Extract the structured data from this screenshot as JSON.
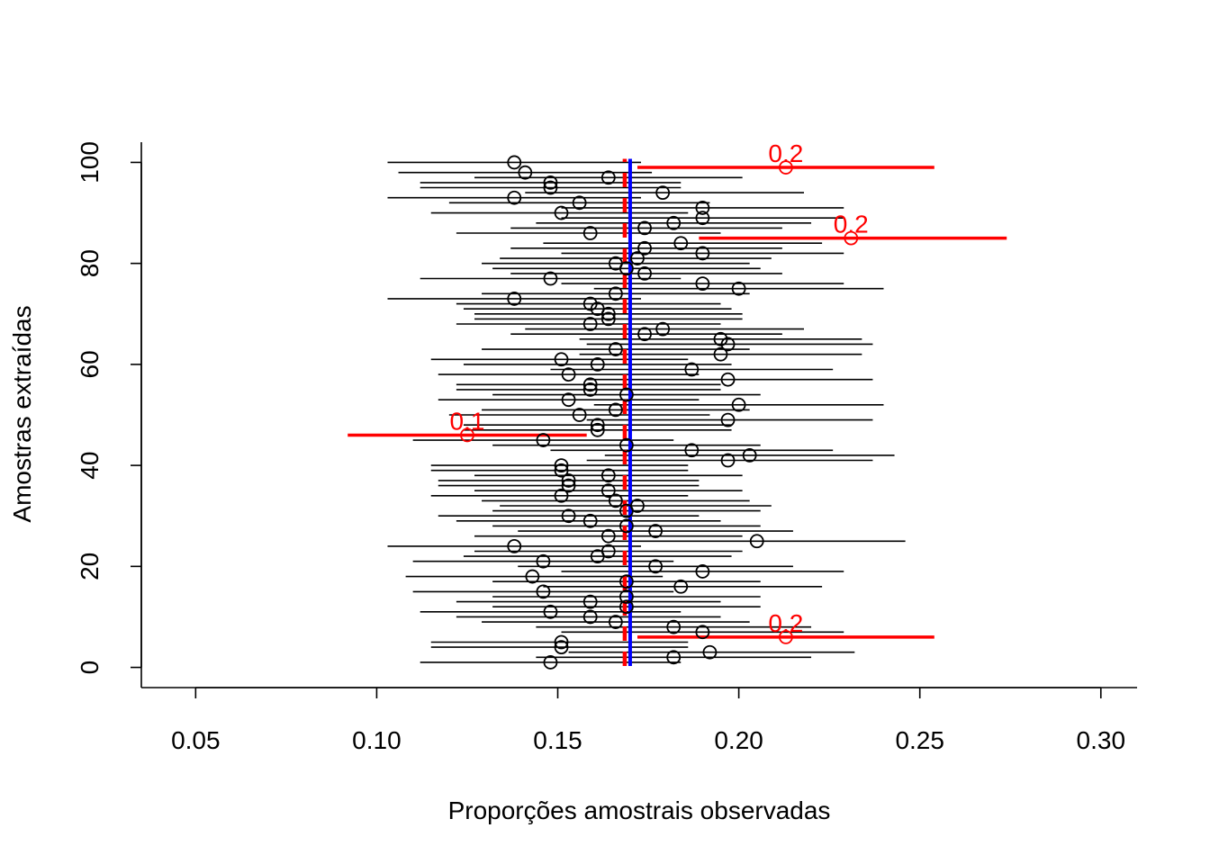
{
  "chart_data": {
    "type": "scatter",
    "title": "",
    "xlabel": "Proporções amostrais observadas",
    "ylabel": "Amostras extraídas",
    "xlim": [
      0.035,
      0.31
    ],
    "ylim": [
      -4,
      104
    ],
    "xticks": [
      "0.05",
      "0.10",
      "0.15",
      "0.20",
      "0.25",
      "0.30"
    ],
    "yticks": [
      "0",
      "20",
      "40",
      "60",
      "80",
      "100"
    ],
    "reference_lines": {
      "true_proportion": 0.17,
      "mean_of_sample_proportions": 0.1685,
      "true_color": "#0000ff",
      "mean_color": "#ff0000"
    },
    "highlight_label_color": "#ff0000",
    "samples": [
      {
        "sample": 1,
        "p": 0.148,
        "lo": 0.112,
        "hi": 0.184
      },
      {
        "sample": 2,
        "p": 0.182,
        "lo": 0.144,
        "hi": 0.22
      },
      {
        "sample": 3,
        "p": 0.192,
        "lo": 0.153,
        "hi": 0.232
      },
      {
        "sample": 4,
        "p": 0.151,
        "lo": 0.115,
        "hi": 0.186
      },
      {
        "sample": 5,
        "p": 0.151,
        "lo": 0.115,
        "hi": 0.186
      },
      {
        "sample": 6,
        "p": 0.213,
        "lo": 0.172,
        "hi": 0.254,
        "outside": true,
        "label": "0.2"
      },
      {
        "sample": 7,
        "p": 0.19,
        "lo": 0.151,
        "hi": 0.229
      },
      {
        "sample": 8,
        "p": 0.182,
        "lo": 0.144,
        "hi": 0.22
      },
      {
        "sample": 9,
        "p": 0.166,
        "lo": 0.129,
        "hi": 0.203
      },
      {
        "sample": 10,
        "p": 0.159,
        "lo": 0.122,
        "hi": 0.195
      },
      {
        "sample": 11,
        "p": 0.148,
        "lo": 0.112,
        "hi": 0.184
      },
      {
        "sample": 12,
        "p": 0.169,
        "lo": 0.132,
        "hi": 0.206
      },
      {
        "sample": 13,
        "p": 0.159,
        "lo": 0.122,
        "hi": 0.195
      },
      {
        "sample": 14,
        "p": 0.169,
        "lo": 0.132,
        "hi": 0.206
      },
      {
        "sample": 15,
        "p": 0.146,
        "lo": 0.11,
        "hi": 0.182
      },
      {
        "sample": 16,
        "p": 0.184,
        "lo": 0.146,
        "hi": 0.223
      },
      {
        "sample": 17,
        "p": 0.169,
        "lo": 0.132,
        "hi": 0.206
      },
      {
        "sample": 18,
        "p": 0.143,
        "lo": 0.108,
        "hi": 0.179
      },
      {
        "sample": 19,
        "p": 0.19,
        "lo": 0.151,
        "hi": 0.229
      },
      {
        "sample": 20,
        "p": 0.177,
        "lo": 0.139,
        "hi": 0.215
      },
      {
        "sample": 21,
        "p": 0.146,
        "lo": 0.11,
        "hi": 0.182
      },
      {
        "sample": 22,
        "p": 0.161,
        "lo": 0.124,
        "hi": 0.198
      },
      {
        "sample": 23,
        "p": 0.164,
        "lo": 0.127,
        "hi": 0.201
      },
      {
        "sample": 24,
        "p": 0.138,
        "lo": 0.103,
        "hi": 0.173
      },
      {
        "sample": 25,
        "p": 0.205,
        "lo": 0.165,
        "hi": 0.246
      },
      {
        "sample": 26,
        "p": 0.164,
        "lo": 0.127,
        "hi": 0.201
      },
      {
        "sample": 27,
        "p": 0.177,
        "lo": 0.139,
        "hi": 0.215
      },
      {
        "sample": 28,
        "p": 0.169,
        "lo": 0.132,
        "hi": 0.206
      },
      {
        "sample": 29,
        "p": 0.159,
        "lo": 0.122,
        "hi": 0.195
      },
      {
        "sample": 30,
        "p": 0.153,
        "lo": 0.117,
        "hi": 0.189
      },
      {
        "sample": 31,
        "p": 0.169,
        "lo": 0.132,
        "hi": 0.206
      },
      {
        "sample": 32,
        "p": 0.172,
        "lo": 0.134,
        "hi": 0.209
      },
      {
        "sample": 33,
        "p": 0.166,
        "lo": 0.129,
        "hi": 0.203
      },
      {
        "sample": 34,
        "p": 0.151,
        "lo": 0.115,
        "hi": 0.186
      },
      {
        "sample": 35,
        "p": 0.164,
        "lo": 0.127,
        "hi": 0.201
      },
      {
        "sample": 36,
        "p": 0.153,
        "lo": 0.117,
        "hi": 0.189
      },
      {
        "sample": 37,
        "p": 0.153,
        "lo": 0.117,
        "hi": 0.189
      },
      {
        "sample": 38,
        "p": 0.164,
        "lo": 0.127,
        "hi": 0.201
      },
      {
        "sample": 39,
        "p": 0.151,
        "lo": 0.115,
        "hi": 0.186
      },
      {
        "sample": 40,
        "p": 0.151,
        "lo": 0.115,
        "hi": 0.186
      },
      {
        "sample": 41,
        "p": 0.197,
        "lo": 0.158,
        "hi": 0.237
      },
      {
        "sample": 42,
        "p": 0.203,
        "lo": 0.163,
        "hi": 0.243
      },
      {
        "sample": 43,
        "p": 0.187,
        "lo": 0.148,
        "hi": 0.226
      },
      {
        "sample": 44,
        "p": 0.169,
        "lo": 0.132,
        "hi": 0.206
      },
      {
        "sample": 45,
        "p": 0.146,
        "lo": 0.11,
        "hi": 0.182
      },
      {
        "sample": 46,
        "p": 0.125,
        "lo": 0.092,
        "hi": 0.158,
        "outside": true,
        "label": "0.1"
      },
      {
        "sample": 47,
        "p": 0.161,
        "lo": 0.124,
        "hi": 0.198
      },
      {
        "sample": 48,
        "p": 0.161,
        "lo": 0.124,
        "hi": 0.198
      },
      {
        "sample": 49,
        "p": 0.197,
        "lo": 0.158,
        "hi": 0.237
      },
      {
        "sample": 50,
        "p": 0.156,
        "lo": 0.12,
        "hi": 0.192
      },
      {
        "sample": 51,
        "p": 0.166,
        "lo": 0.129,
        "hi": 0.203
      },
      {
        "sample": 52,
        "p": 0.2,
        "lo": 0.16,
        "hi": 0.24
      },
      {
        "sample": 53,
        "p": 0.153,
        "lo": 0.117,
        "hi": 0.189
      },
      {
        "sample": 54,
        "p": 0.169,
        "lo": 0.132,
        "hi": 0.206
      },
      {
        "sample": 55,
        "p": 0.159,
        "lo": 0.122,
        "hi": 0.195
      },
      {
        "sample": 56,
        "p": 0.159,
        "lo": 0.122,
        "hi": 0.195
      },
      {
        "sample": 57,
        "p": 0.197,
        "lo": 0.158,
        "hi": 0.237
      },
      {
        "sample": 58,
        "p": 0.153,
        "lo": 0.117,
        "hi": 0.189
      },
      {
        "sample": 59,
        "p": 0.187,
        "lo": 0.148,
        "hi": 0.226
      },
      {
        "sample": 60,
        "p": 0.161,
        "lo": 0.124,
        "hi": 0.198
      },
      {
        "sample": 61,
        "p": 0.151,
        "lo": 0.115,
        "hi": 0.186
      },
      {
        "sample": 62,
        "p": 0.195,
        "lo": 0.156,
        "hi": 0.234
      },
      {
        "sample": 63,
        "p": 0.166,
        "lo": 0.129,
        "hi": 0.203
      },
      {
        "sample": 64,
        "p": 0.197,
        "lo": 0.158,
        "hi": 0.237
      },
      {
        "sample": 65,
        "p": 0.195,
        "lo": 0.156,
        "hi": 0.234
      },
      {
        "sample": 66,
        "p": 0.174,
        "lo": 0.137,
        "hi": 0.212
      },
      {
        "sample": 67,
        "p": 0.179,
        "lo": 0.141,
        "hi": 0.218
      },
      {
        "sample": 68,
        "p": 0.159,
        "lo": 0.122,
        "hi": 0.195
      },
      {
        "sample": 69,
        "p": 0.164,
        "lo": 0.127,
        "hi": 0.201
      },
      {
        "sample": 70,
        "p": 0.164,
        "lo": 0.127,
        "hi": 0.201
      },
      {
        "sample": 71,
        "p": 0.161,
        "lo": 0.124,
        "hi": 0.198
      },
      {
        "sample": 72,
        "p": 0.159,
        "lo": 0.122,
        "hi": 0.195
      },
      {
        "sample": 73,
        "p": 0.138,
        "lo": 0.103,
        "hi": 0.173
      },
      {
        "sample": 74,
        "p": 0.166,
        "lo": 0.129,
        "hi": 0.203
      },
      {
        "sample": 75,
        "p": 0.2,
        "lo": 0.16,
        "hi": 0.24
      },
      {
        "sample": 76,
        "p": 0.19,
        "lo": 0.151,
        "hi": 0.229
      },
      {
        "sample": 77,
        "p": 0.148,
        "lo": 0.112,
        "hi": 0.184
      },
      {
        "sample": 78,
        "p": 0.174,
        "lo": 0.137,
        "hi": 0.212
      },
      {
        "sample": 79,
        "p": 0.169,
        "lo": 0.132,
        "hi": 0.206
      },
      {
        "sample": 80,
        "p": 0.166,
        "lo": 0.129,
        "hi": 0.203
      },
      {
        "sample": 81,
        "p": 0.172,
        "lo": 0.134,
        "hi": 0.209
      },
      {
        "sample": 82,
        "p": 0.19,
        "lo": 0.151,
        "hi": 0.229
      },
      {
        "sample": 83,
        "p": 0.174,
        "lo": 0.137,
        "hi": 0.212
      },
      {
        "sample": 84,
        "p": 0.184,
        "lo": 0.146,
        "hi": 0.223
      },
      {
        "sample": 85,
        "p": 0.231,
        "lo": 0.189,
        "hi": 0.274,
        "outside": true,
        "label": "0.2"
      },
      {
        "sample": 86,
        "p": 0.159,
        "lo": 0.122,
        "hi": 0.195
      },
      {
        "sample": 87,
        "p": 0.174,
        "lo": 0.137,
        "hi": 0.212
      },
      {
        "sample": 88,
        "p": 0.182,
        "lo": 0.144,
        "hi": 0.22
      },
      {
        "sample": 89,
        "p": 0.19,
        "lo": 0.151,
        "hi": 0.229
      },
      {
        "sample": 90,
        "p": 0.151,
        "lo": 0.115,
        "hi": 0.186
      },
      {
        "sample": 91,
        "p": 0.19,
        "lo": 0.151,
        "hi": 0.229
      },
      {
        "sample": 92,
        "p": 0.156,
        "lo": 0.12,
        "hi": 0.192
      },
      {
        "sample": 93,
        "p": 0.138,
        "lo": 0.103,
        "hi": 0.173
      },
      {
        "sample": 94,
        "p": 0.179,
        "lo": 0.141,
        "hi": 0.218
      },
      {
        "sample": 95,
        "p": 0.148,
        "lo": 0.112,
        "hi": 0.184
      },
      {
        "sample": 96,
        "p": 0.148,
        "lo": 0.112,
        "hi": 0.184
      },
      {
        "sample": 97,
        "p": 0.164,
        "lo": 0.127,
        "hi": 0.201
      },
      {
        "sample": 98,
        "p": 0.141,
        "lo": 0.106,
        "hi": 0.176
      },
      {
        "sample": 99,
        "p": 0.213,
        "lo": 0.172,
        "hi": 0.254,
        "outside": true,
        "label": "0.2"
      },
      {
        "sample": 100,
        "p": 0.138,
        "lo": 0.103,
        "hi": 0.173
      }
    ]
  }
}
